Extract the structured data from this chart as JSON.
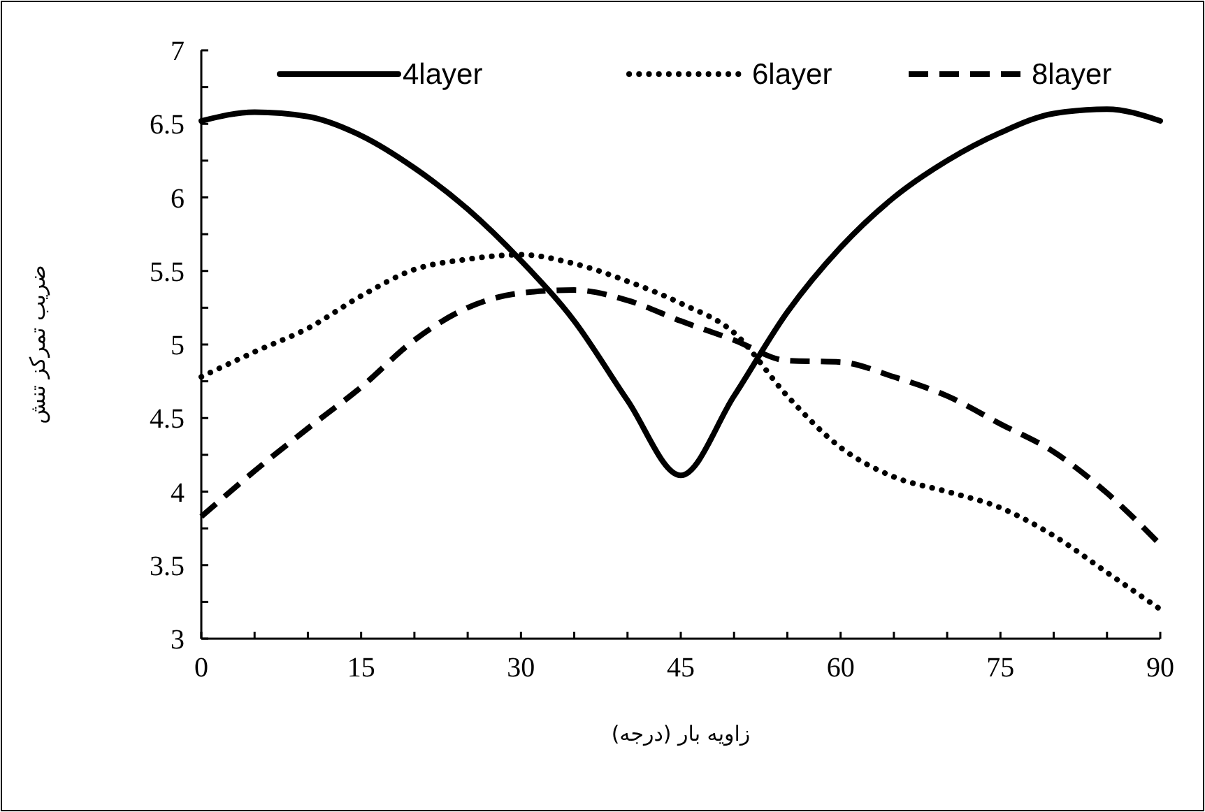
{
  "chart_data": {
    "type": "line",
    "xlabel": "زاویه بار (درجه)",
    "ylabel": "ضریب تمرکز تنش",
    "x": [
      0,
      5,
      10,
      15,
      20,
      25,
      30,
      35,
      40,
      45,
      50,
      55,
      60,
      65,
      70,
      75,
      80,
      85,
      90
    ],
    "series": [
      {
        "name": "4layer",
        "color": "#000000",
        "line_style": "solid",
        "values": [
          6.52,
          6.58,
          6.55,
          6.42,
          6.2,
          5.92,
          5.57,
          5.16,
          4.62,
          4.11,
          4.65,
          5.22,
          5.66,
          6.0,
          6.25,
          6.44,
          6.57,
          6.6,
          6.52
        ]
      },
      {
        "name": "6layer",
        "color": "#000000",
        "line_style": "dotted",
        "values": [
          4.78,
          4.95,
          5.11,
          5.33,
          5.51,
          5.58,
          5.61,
          5.55,
          5.43,
          5.28,
          5.08,
          4.65,
          4.3,
          4.1,
          4.0,
          3.89,
          3.7,
          3.45,
          3.2
        ]
      },
      {
        "name": "8layer",
        "color": "#000000",
        "line_style": "dashed",
        "values": [
          3.83,
          4.14,
          4.43,
          4.71,
          5.03,
          5.25,
          5.35,
          5.37,
          5.3,
          5.16,
          5.03,
          4.89,
          4.88,
          4.78,
          4.65,
          4.46,
          4.27,
          3.99,
          3.64
        ]
      }
    ],
    "xlim": [
      0,
      90
    ],
    "ylim": [
      3,
      7
    ],
    "xticks": [
      0,
      {
        "value": 5,
        "label": null
      },
      {
        "value": 10,
        "label": null
      },
      15,
      {
        "value": 20,
        "label": null
      },
      {
        "value": 25,
        "label": null
      },
      30,
      {
        "value": 35,
        "label": null
      },
      {
        "value": 40,
        "label": null
      },
      45,
      {
        "value": 50,
        "label": null
      },
      {
        "value": 55,
        "label": null
      },
      60,
      {
        "value": 65,
        "label": null
      },
      {
        "value": 70,
        "label": null
      },
      75,
      {
        "value": 80,
        "label": null
      },
      {
        "value": 85,
        "label": null
      },
      90
    ],
    "yticks": [
      3,
      {
        "value": 3.25,
        "label": null
      },
      3.5,
      {
        "value": 3.75,
        "label": null
      },
      4,
      {
        "value": 4.25,
        "label": null
      },
      4.5,
      {
        "value": 4.75,
        "label": null
      },
      5,
      {
        "value": 5.25,
        "label": null
      },
      5.5,
      {
        "value": 5.75,
        "label": null
      },
      6,
      {
        "value": 6.25,
        "label": null
      },
      6.5,
      {
        "value": 6.75,
        "label": null
      },
      7
    ],
    "legend": "top",
    "grid": false,
    "marker": "none"
  }
}
